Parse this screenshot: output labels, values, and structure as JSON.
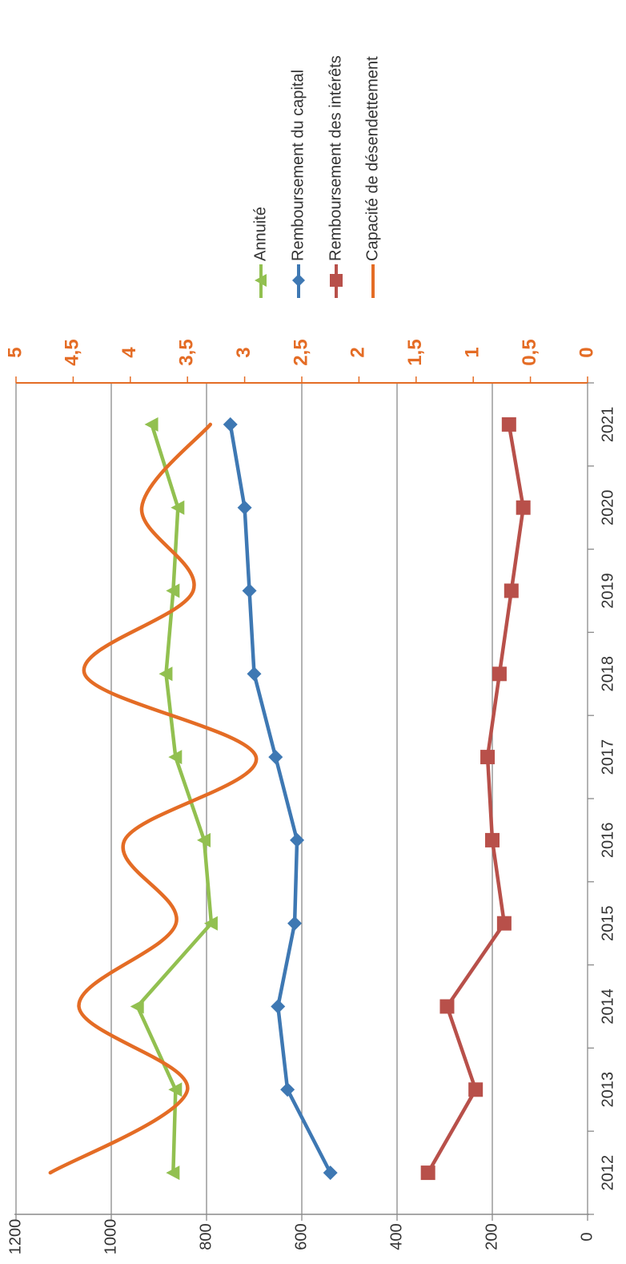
{
  "chart_data": {
    "type": "line",
    "title": "",
    "xlabel": "",
    "ylabel": "",
    "categories": [
      "2012",
      "2013",
      "2014",
      "2015",
      "2016",
      "2017",
      "2018",
      "2019",
      "2020",
      "2021"
    ],
    "y_left_ticks": [
      "0",
      "200",
      "400",
      "600",
      "800",
      "1000",
      "1200"
    ],
    "y_left_range": [
      0,
      1200
    ],
    "y_right_ticks": [
      "0",
      "0,5",
      "1",
      "1,5",
      "2",
      "2,5",
      "3",
      "3,5",
      "4",
      "4,5",
      "5"
    ],
    "y_right_range": [
      0,
      5
    ],
    "grid": true,
    "legend_position": "right",
    "orientation": "rotated-90-clockwise",
    "series": [
      {
        "name": "Annuité",
        "axis": "left",
        "color": "#92c050",
        "marker": "triangle",
        "smooth": false,
        "values": [
          870,
          865,
          945,
          790,
          805,
          865,
          885,
          870,
          860,
          915
        ]
      },
      {
        "name": "Remboursement du capital",
        "axis": "left",
        "color": "#3e78b3",
        "marker": "diamond",
        "smooth": false,
        "values": [
          540,
          630,
          650,
          615,
          610,
          655,
          700,
          710,
          720,
          750
        ]
      },
      {
        "name": "Remboursement des intérêts",
        "axis": "left",
        "color": "#b8504a",
        "marker": "square",
        "smooth": false,
        "values": [
          335,
          235,
          295,
          175,
          200,
          210,
          185,
          160,
          135,
          165
        ]
      },
      {
        "name": "Capacité de désendettement",
        "axis": "right",
        "color": "#e46c25",
        "marker": "none",
        "smooth": true,
        "values": [
          4.7,
          3.5,
          4.45,
          3.6,
          4.05,
          2.9,
          4.4,
          3.45,
          3.9,
          3.3
        ]
      }
    ]
  }
}
